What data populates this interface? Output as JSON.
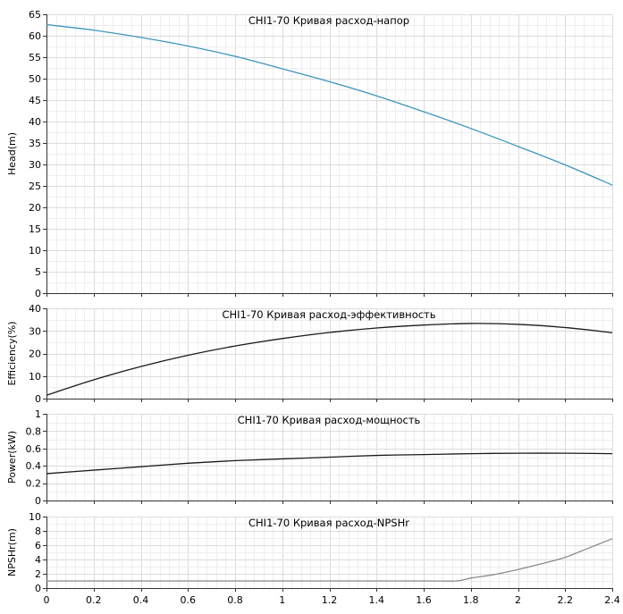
{
  "chart_data": [
    {
      "type": "line",
      "title": "CHI1-70 Кривая расход-напор",
      "xlabel": "",
      "ylabel": "Head(m)",
      "xlim": [
        0,
        2.4
      ],
      "ylim": [
        0,
        65
      ],
      "yticks": [
        0,
        5,
        10,
        15,
        20,
        25,
        30,
        35,
        40,
        45,
        50,
        55,
        60,
        65
      ],
      "xticks": [],
      "grid": true,
      "color": "#3d95bf",
      "series": [
        {
          "x": [
            0,
            0.2,
            0.4,
            0.6,
            0.8,
            1.0,
            1.2,
            1.4,
            1.6,
            1.8,
            2.0,
            2.2,
            2.4
          ],
          "values": [
            62.6,
            61.3,
            59.6,
            57.6,
            55.2,
            52.3,
            49.3,
            46.0,
            42.3,
            38.4,
            34.2,
            29.9,
            25.2
          ]
        }
      ]
    },
    {
      "type": "line",
      "title": "CHI1-70 Кривая расход-эффективность",
      "xlabel": "",
      "ylabel": "Efficiency(%)",
      "xlim": [
        0,
        2.4
      ],
      "ylim": [
        0,
        40
      ],
      "yticks": [
        0,
        10,
        20,
        30,
        40
      ],
      "xticks": [],
      "grid": true,
      "color": "#1a1a1a",
      "series": [
        {
          "x": [
            0,
            0.2,
            0.4,
            0.6,
            0.8,
            1.0,
            1.2,
            1.4,
            1.6,
            1.8,
            2.0,
            2.2,
            2.4
          ],
          "values": [
            1.5,
            8.3,
            14.2,
            19.2,
            23.3,
            26.6,
            29.3,
            31.3,
            32.6,
            33.3,
            32.9,
            31.5,
            29.2
          ]
        }
      ]
    },
    {
      "type": "line",
      "title": "CHI1-70 Кривая расход-мощность",
      "xlabel": "",
      "ylabel": "Power(kW)",
      "xlim": [
        0,
        2.4
      ],
      "ylim": [
        0,
        1
      ],
      "yticks": [
        0,
        0.2,
        0.4,
        0.6,
        0.8,
        1
      ],
      "xticks": [],
      "grid": true,
      "color": "#1a1a1a",
      "series": [
        {
          "x": [
            0,
            0.2,
            0.4,
            0.6,
            0.8,
            1.0,
            1.2,
            1.4,
            1.6,
            1.8,
            2.0,
            2.2,
            2.4
          ],
          "values": [
            0.31,
            0.35,
            0.39,
            0.43,
            0.46,
            0.48,
            0.5,
            0.52,
            0.53,
            0.54,
            0.545,
            0.545,
            0.54
          ]
        }
      ]
    },
    {
      "type": "line",
      "title": "CHI1-70 Кривая расход-NPSHr",
      "xlabel": "",
      "ylabel": "NPSHr(m)",
      "xlim": [
        0,
        2.4
      ],
      "ylim": [
        0,
        10
      ],
      "yticks": [
        0,
        2,
        4,
        6,
        8,
        10
      ],
      "xticks": [
        0,
        0.2,
        0.4,
        0.6,
        0.8,
        1,
        1.2,
        1.4,
        1.6,
        1.8,
        2,
        2.2,
        2.4
      ],
      "grid": true,
      "color": "#8c8c8c",
      "series": [
        {
          "x": [
            0,
            0.4,
            0.8,
            1.2,
            1.6,
            1.74,
            1.8,
            1.9,
            2.0,
            2.1,
            2.2,
            2.3,
            2.4
          ],
          "values": [
            1.0,
            1.0,
            1.0,
            1.0,
            1.0,
            1.0,
            1.4,
            1.9,
            2.6,
            3.4,
            4.3,
            5.6,
            6.9
          ]
        }
      ]
    }
  ]
}
